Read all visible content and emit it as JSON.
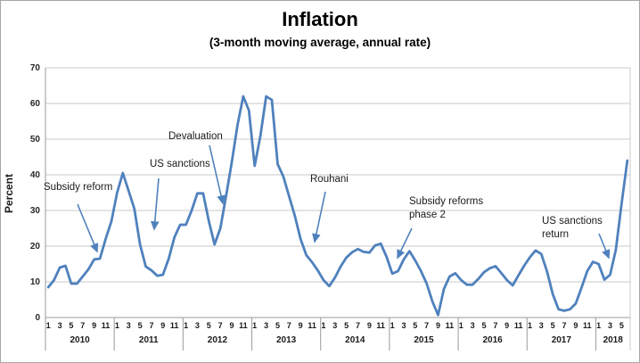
{
  "chart": {
    "title": "Inflation",
    "subtitle": "(3-month moving average, annual rate)",
    "ylabel": "Percent"
  },
  "annotations": [
    {
      "id": "subsidy-reform",
      "text": "Subsidy reform"
    },
    {
      "id": "us-sanctions",
      "text": "US sanctions"
    },
    {
      "id": "devaluation",
      "text": "Devaluation"
    },
    {
      "id": "rouhani",
      "text": "Rouhani"
    },
    {
      "id": "subsidy-reforms-phase-2",
      "text": "Subsidy reforms\nphase 2"
    },
    {
      "id": "us-sanctions-return",
      "text": "US sanctions\nreturn"
    }
  ],
  "chart_data": {
    "type": "line",
    "title": "Inflation",
    "subtitle": "(3-month moving average, annual rate)",
    "xlabel": "",
    "ylabel": "Percent",
    "ylim": [
      0,
      70
    ],
    "yticks": [
      0,
      10,
      20,
      30,
      40,
      50,
      60,
      70
    ],
    "grid": "horizontal",
    "legend": "none",
    "line_color": "#4F81BD",
    "gridline_color": "#c9c9c9",
    "axis_color": "#9a9a9a",
    "month_tick_labels": [
      "1",
      "3",
      "5",
      "7",
      "9",
      "11"
    ],
    "years": [
      {
        "label": "2010",
        "months": 12
      },
      {
        "label": "2011",
        "months": 12
      },
      {
        "label": "2012",
        "months": 12
      },
      {
        "label": "2013",
        "months": 12
      },
      {
        "label": "2014",
        "months": 12
      },
      {
        "label": "2015",
        "months": 12
      },
      {
        "label": "2016",
        "months": 12
      },
      {
        "label": "2017",
        "months": 12
      },
      {
        "label": "2018",
        "months": 6
      }
    ],
    "series": [
      {
        "name": "Inflation (3-month moving average, annual rate)",
        "start": "2010-01",
        "frequency": "monthly",
        "values": [
          8.5,
          10.5,
          14,
          14.5,
          9.5,
          9.5,
          11.5,
          13.5,
          16.3,
          16.5,
          22,
          27,
          35,
          40.5,
          35.5,
          30.5,
          20.5,
          14.3,
          13.2,
          11.7,
          12,
          16.5,
          22.5,
          26,
          26,
          30,
          34.8,
          34.8,
          27,
          20.5,
          25,
          34,
          43.5,
          54,
          62,
          58,
          42.5,
          51,
          62,
          61,
          43,
          39.5,
          34,
          28.5,
          22,
          17.5,
          15.5,
          13.2,
          10.5,
          8.8,
          11.2,
          14.3,
          16.8,
          18.3,
          19.2,
          18.4,
          18.2,
          20.2,
          20.7,
          17,
          12.3,
          13,
          16.3,
          18.6,
          16,
          13,
          9.5,
          4.5,
          0.7,
          8,
          11.5,
          12.4,
          10.5,
          9.2,
          9.2,
          10.8,
          12.7,
          13.8,
          14.4,
          12.5,
          10.5,
          9,
          11.8,
          14.5,
          16.9,
          18.8,
          17.8,
          12.9,
          6.5,
          2.3,
          1.9,
          2.3,
          3.9,
          8.3,
          13,
          15.6,
          15,
          10.6,
          12,
          19,
          32,
          44
        ]
      }
    ],
    "annotations": [
      {
        "text": "Subsidy reform",
        "points_at": "2010-12"
      },
      {
        "text": "US sanctions",
        "points_at": "2011-08"
      },
      {
        "text": "Devaluation",
        "points_at": "2012-07"
      },
      {
        "text": "Rouhani",
        "points_at": "2013-11"
      },
      {
        "text": "Subsidy reforms\nphase 2",
        "points_at": "2015-01"
      },
      {
        "text": "US sanctions\nreturn",
        "points_at": "2018-04"
      }
    ]
  }
}
